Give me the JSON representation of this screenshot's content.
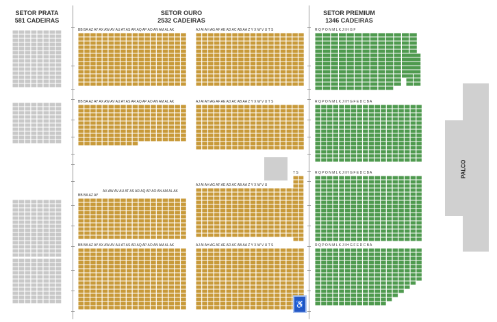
{
  "sectors": {
    "prata": {
      "name": "SETOR PRATA",
      "capacity": "581 CADEIRAS"
    },
    "ouro": {
      "name": "SETOR OURO",
      "capacity": "2532 CADEIRAS"
    },
    "premium": {
      "name": "SETOR PREMIUM",
      "capacity": "1346 CADEIRAS"
    }
  },
  "stage": {
    "label": "PALCO"
  },
  "row_letters": {
    "ouro_left_top": "BB BA AZ AY AX AW AV AU AT AS AR AQ AP AO AN AM AL AK",
    "ouro_right_top": "AJ AI AH AG AF AE AD AC AB AA Z Y X W V U T S",
    "ouro_left_lower": "AX AW AV AU AT AS AR AQ AP AO AN AM AL AK",
    "ouro_left_lower2": "BB BA AZ AY",
    "ouro_right_lower": "AJ AI AH AG AF AE AD AC AB AA Z Y X W V U",
    "ouro_ts": "T S",
    "premium_top": "R Q P O N M L K J I H G F",
    "premium_mid": "R Q P O N M L K J I H G F E D C B A",
    "premium_bottom": "R Q P O N M L K J I H G F E D C B A"
  },
  "accessibility_icon": "wheelchair-icon",
  "colors": {
    "prata": "#c8c8c8",
    "ouro": "#c89a3a",
    "premium": "#4f9a4f",
    "stage": "#d0d0d0",
    "accessible": "#2458c6"
  }
}
